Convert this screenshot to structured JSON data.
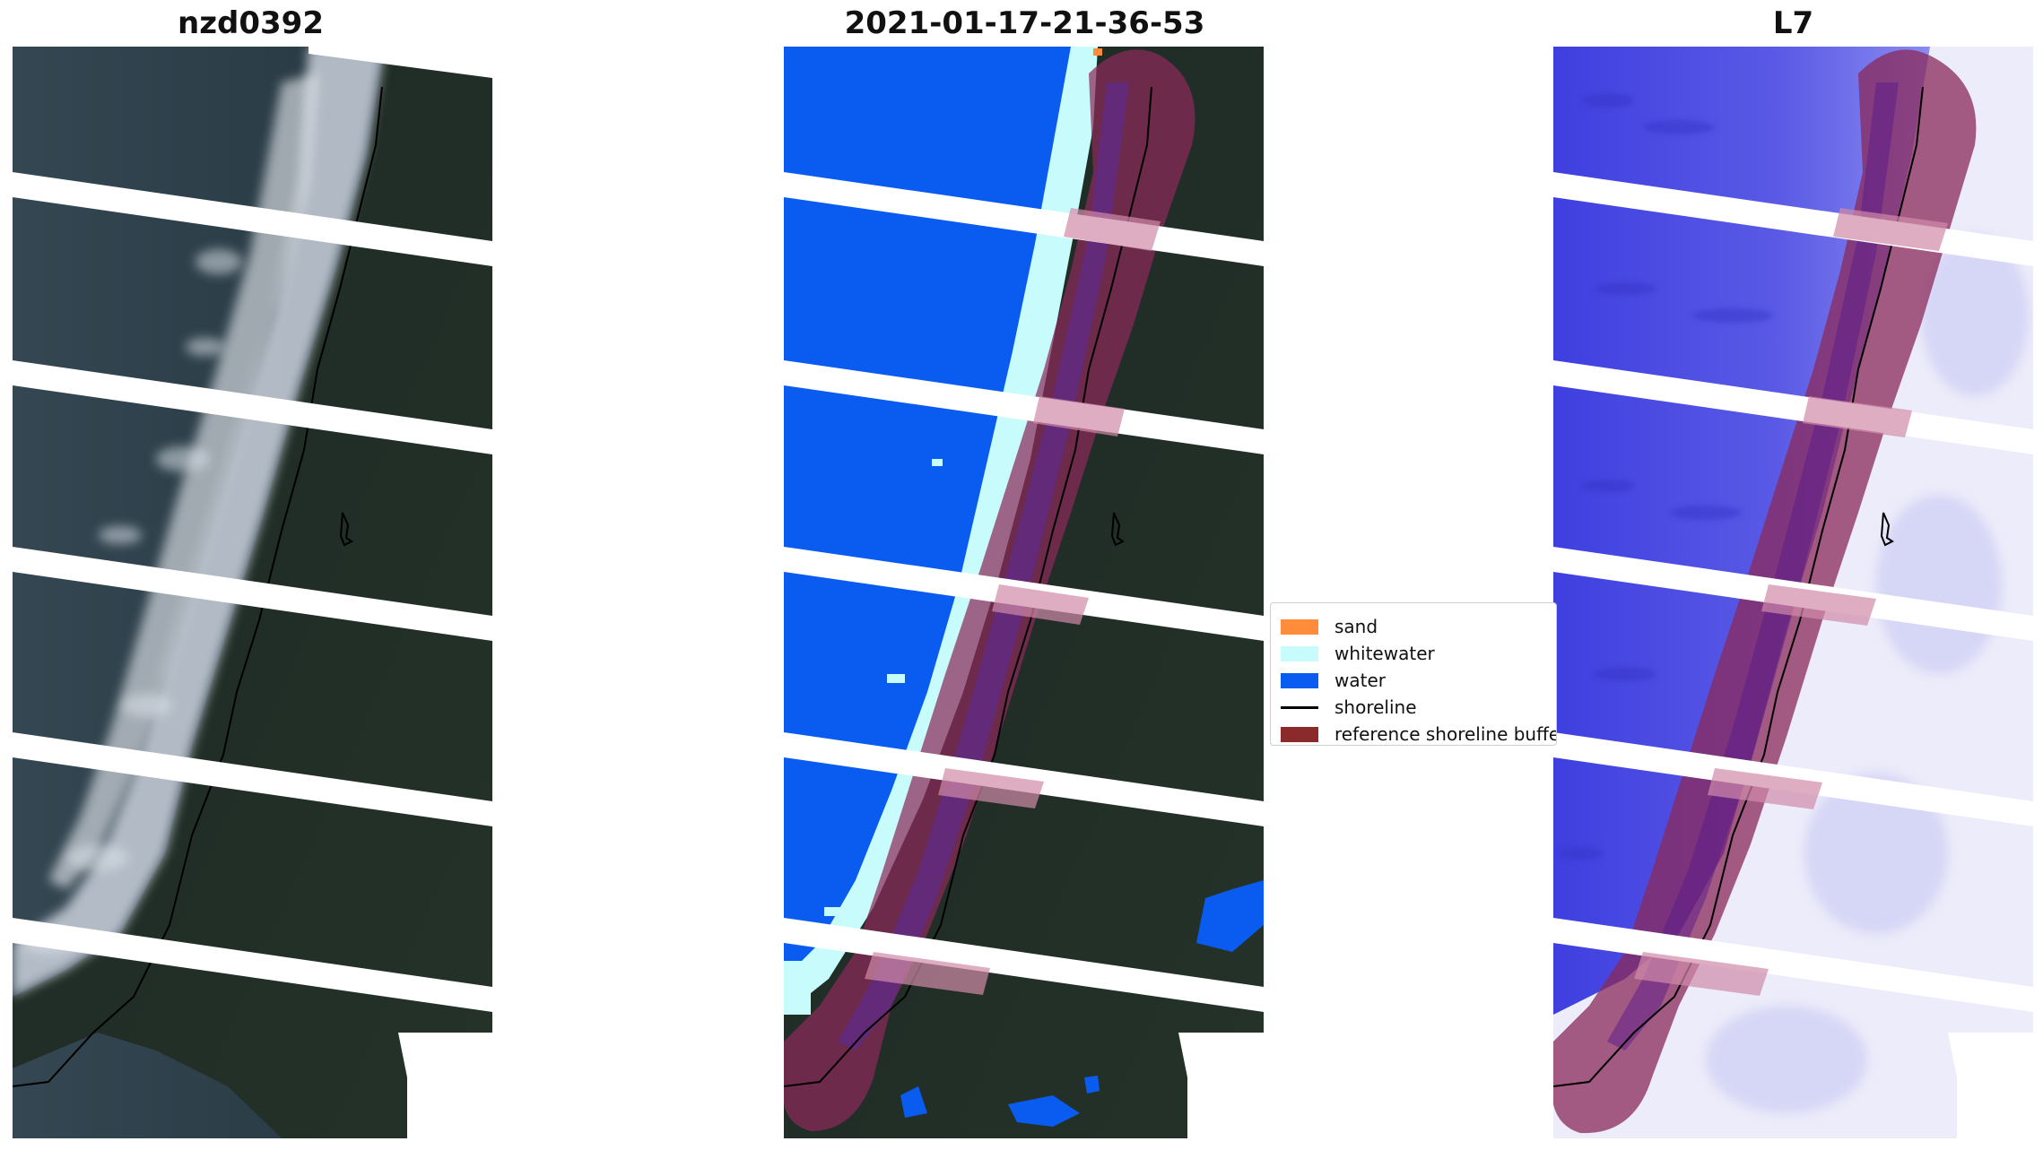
{
  "panels": [
    {
      "title": "nzd0392"
    },
    {
      "title": "2021-01-17-21-36-53"
    },
    {
      "title": "L7"
    }
  ],
  "legend": {
    "items": [
      {
        "label": "sand",
        "color": "#ff8c3a",
        "kind": "patch"
      },
      {
        "label": "whitewater",
        "color": "#c8fbfb",
        "kind": "patch"
      },
      {
        "label": "water",
        "color": "#0a5cf0",
        "kind": "patch"
      },
      {
        "label": "shoreline",
        "color": "#000000",
        "kind": "line"
      },
      {
        "label": "reference shoreline buffer",
        "color": "#8b2a2a",
        "kind": "patch"
      }
    ]
  },
  "colors": {
    "water_rgb_dark": "#2c3c46",
    "vegetation_dark": "#1f2a28",
    "whitewater_rgb": "#e8ecf2",
    "class_water": "#0a5cf0",
    "class_whitewater": "#c8fbfb",
    "class_sand": "#ff8c3a",
    "buffer_overlay": "#8b2a5a",
    "mndwi_water": "#4848e0",
    "mndwi_land": "#e8e8f8",
    "gap_stripe": "#ffffff"
  }
}
